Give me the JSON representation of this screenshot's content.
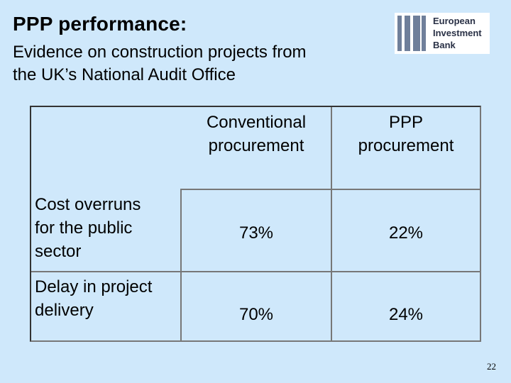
{
  "slide": {
    "title": "PPP performance:",
    "subtitle_lines": [
      "Evidence on construction projects from",
      "the UK’s National Audit Office"
    ],
    "page_number": "22"
  },
  "logo": {
    "name_lines": [
      "European",
      "Investment",
      "Bank"
    ],
    "icon": "eib-logo-icon",
    "color": "#2a3146"
  },
  "table": {
    "columns": [
      {
        "lines": [
          "Conventional",
          "procurement"
        ]
      },
      {
        "lines": [
          "PPP",
          "procurement"
        ]
      }
    ],
    "rows": [
      {
        "label_lines": [
          "Cost overruns",
          "for the public",
          "sector"
        ],
        "values": [
          "73%",
          "22%"
        ]
      },
      {
        "label_lines": [
          "Delay in project",
          "delivery"
        ],
        "values": [
          "70%",
          "24%"
        ]
      }
    ]
  },
  "colors": {
    "background": "#cfe8fb",
    "border": "#777777"
  }
}
